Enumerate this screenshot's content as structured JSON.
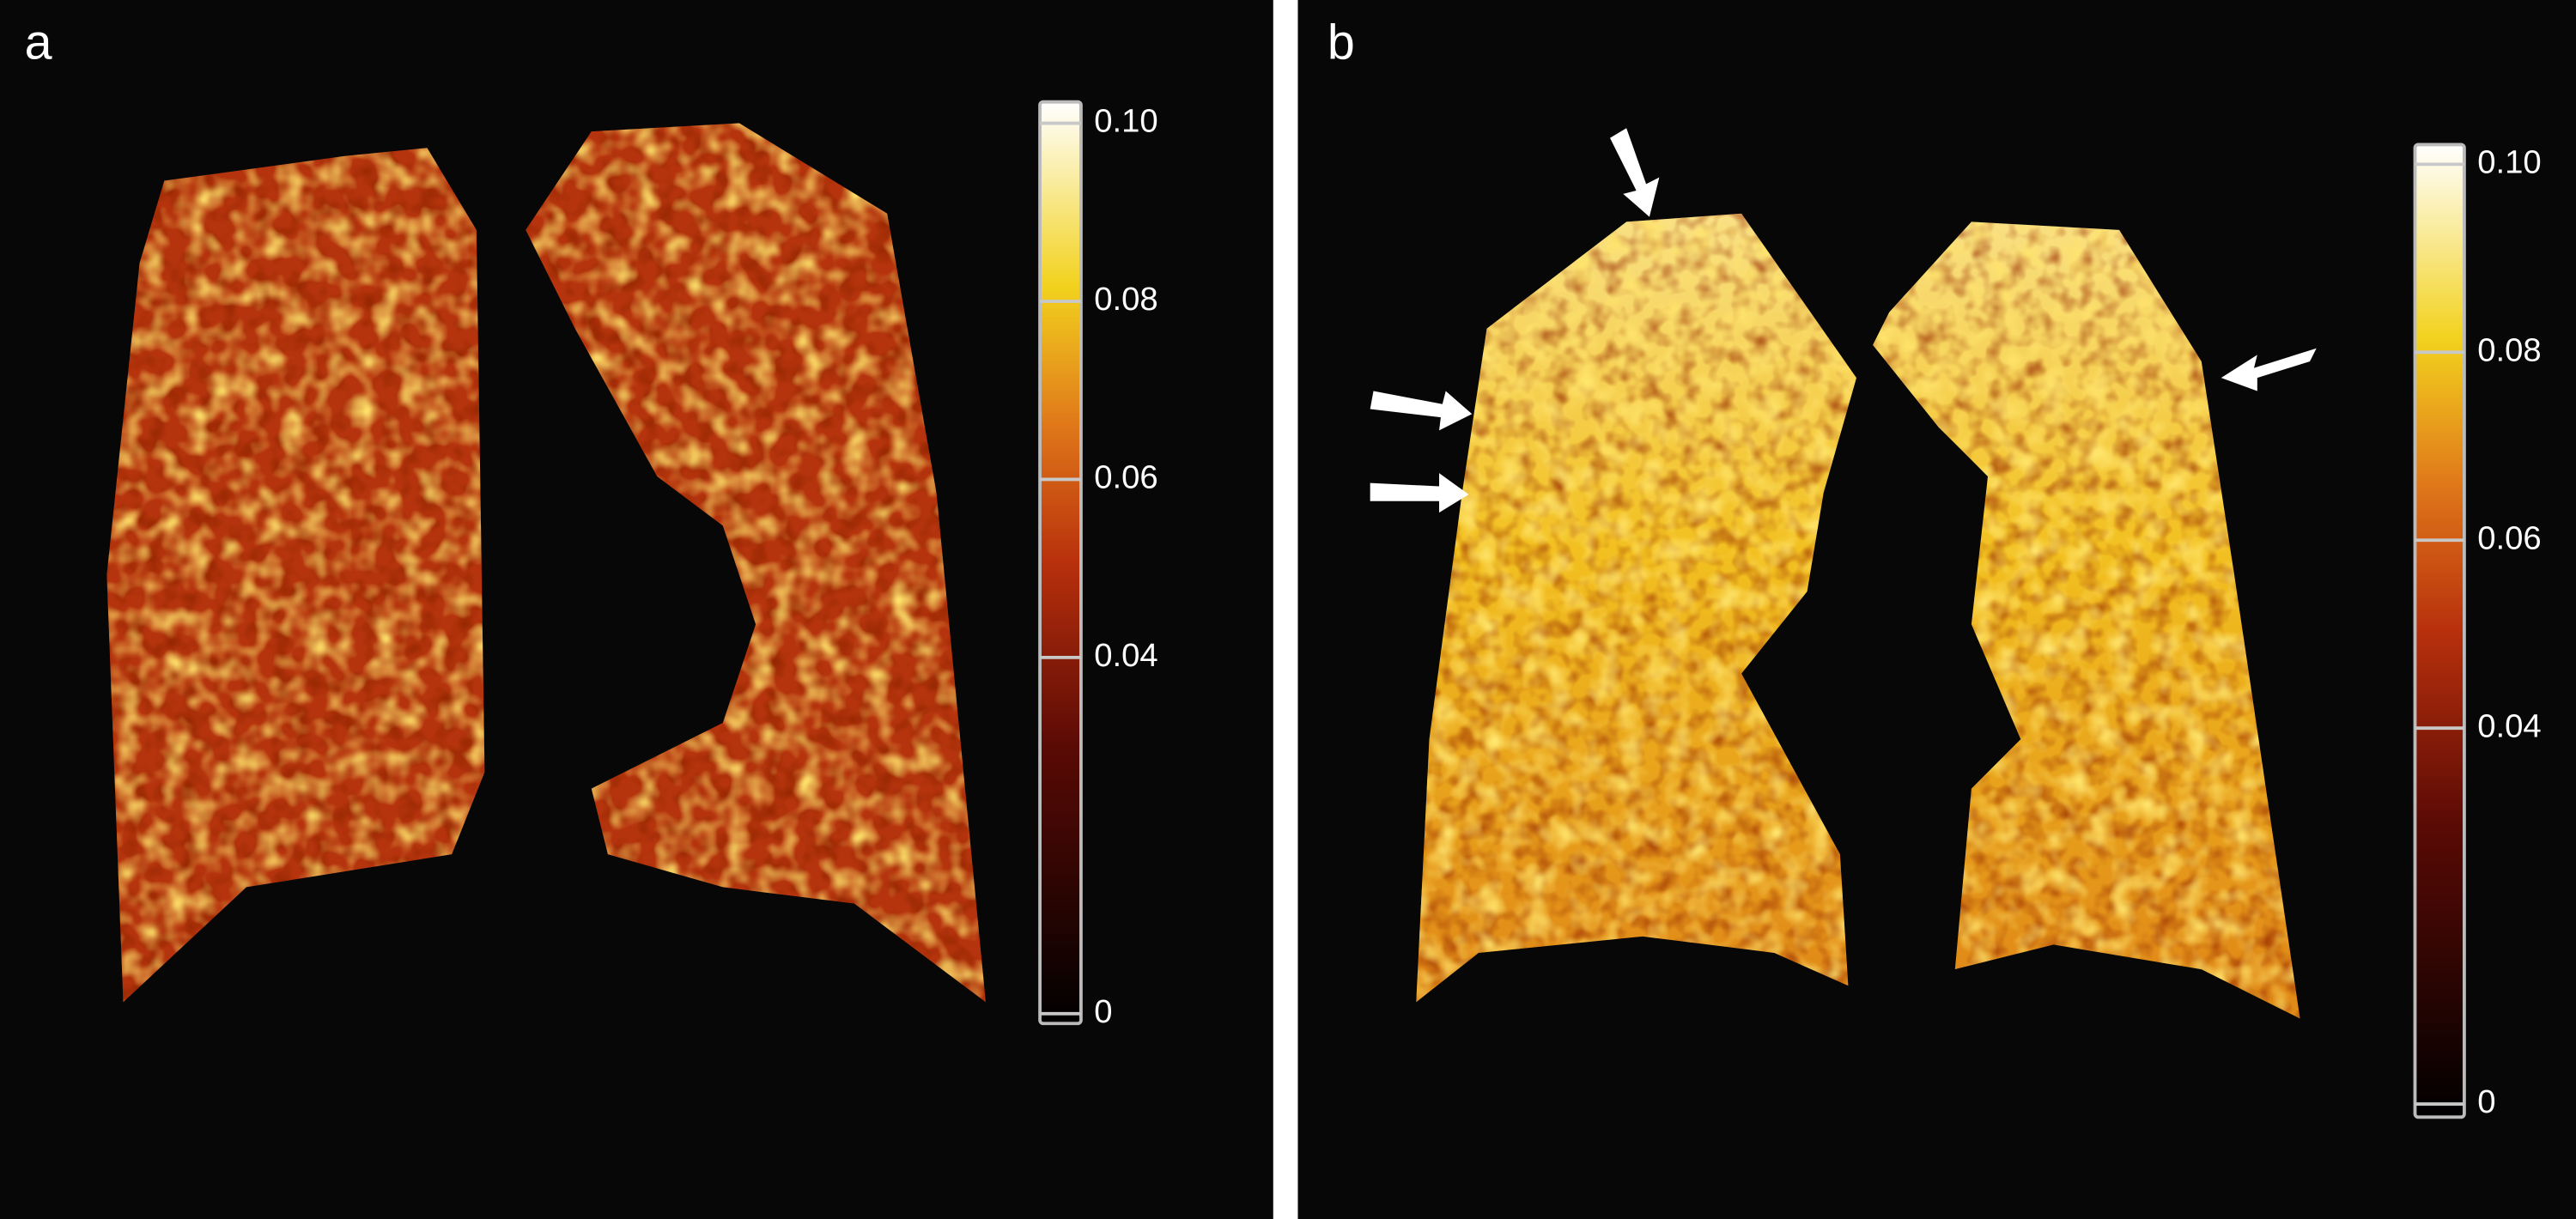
{
  "panels": [
    {
      "label": "a",
      "colorbar": {
        "ticks": [
          0,
          0.04,
          0.06,
          0.08,
          {
            "value": 0.1,
            "label": "0.10"
          }
        ]
      }
    },
    {
      "label": "b",
      "colorbar": {
        "ticks": [
          0,
          0.04,
          0.06,
          0.08,
          {
            "value": 0.1,
            "label": "0.10"
          }
        ]
      }
    }
  ]
}
